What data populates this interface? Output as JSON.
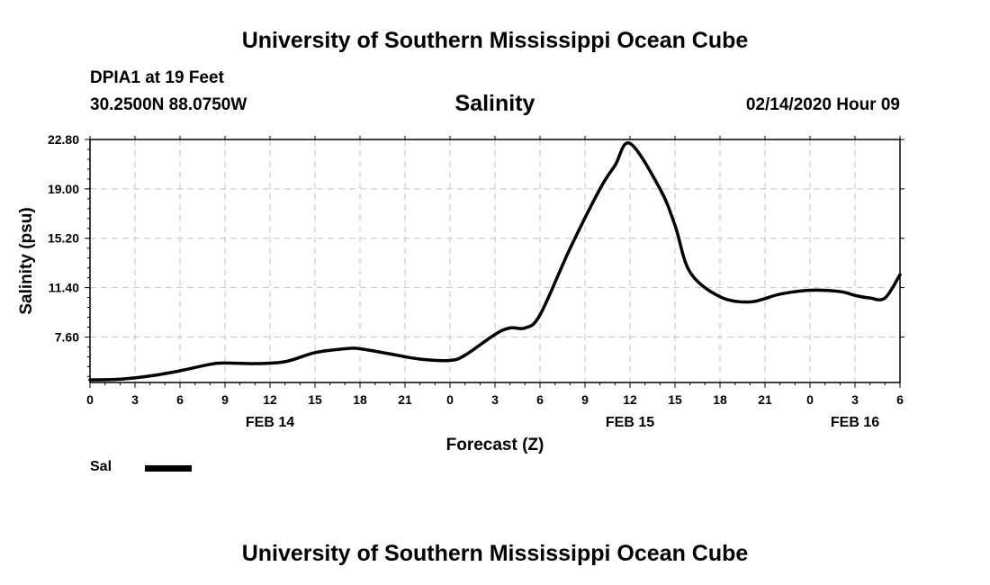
{
  "header": {
    "title": "University of Southern Mississippi Ocean Cube",
    "station": "DPIA1 at 19 Feet",
    "coords": "30.2500N 88.0750W",
    "variable": "Salinity",
    "datetime": "02/14/2020 Hour 09"
  },
  "footer": {
    "title": "University of Southern Mississippi Ocean Cube"
  },
  "legend": {
    "label": "Sal"
  },
  "chart_data": {
    "type": "line",
    "xlabel": "Forecast (Z)",
    "ylabel": "Salinity (psu)",
    "xlim": [
      0,
      54
    ],
    "ylim": [
      4.1,
      22.8
    ],
    "yticks": [
      "22.80",
      "19.00",
      "15.20",
      "11.40",
      "7.60"
    ],
    "ytick_values": [
      22.8,
      19.0,
      15.2,
      11.4,
      7.6
    ],
    "xtick_labels": [
      "0",
      "3",
      "6",
      "9",
      "12",
      "15",
      "18",
      "21",
      "0",
      "3",
      "6",
      "9",
      "12",
      "15",
      "18",
      "21",
      "0",
      "3",
      "6"
    ],
    "date_labels": [
      {
        "label": "FEB 14",
        "hour_offset": 12
      },
      {
        "label": "FEB 15",
        "hour_offset": 36
      },
      {
        "label": "FEB 16",
        "hour_offset": 51
      }
    ],
    "grid": true,
    "series": [
      {
        "name": "Sal",
        "color": "#000000",
        "x": [
          0,
          2,
          4,
          6,
          8,
          9,
          11,
          13,
          15,
          17,
          18,
          20,
          22,
          24,
          25,
          27,
          28,
          29,
          30,
          32,
          34,
          35,
          36,
          38,
          39,
          40,
          42,
          44,
          46,
          48,
          50,
          51,
          52,
          53,
          54
        ],
        "y": [
          4.3,
          4.35,
          4.6,
          5.0,
          5.5,
          5.6,
          5.55,
          5.7,
          6.4,
          6.7,
          6.7,
          6.3,
          5.9,
          5.8,
          6.2,
          7.8,
          8.3,
          8.3,
          9.3,
          14.4,
          19.0,
          20.8,
          22.5,
          19.0,
          16.2,
          12.6,
          10.7,
          10.3,
          10.9,
          11.2,
          11.1,
          10.8,
          10.6,
          10.6,
          12.4
        ]
      }
    ]
  }
}
